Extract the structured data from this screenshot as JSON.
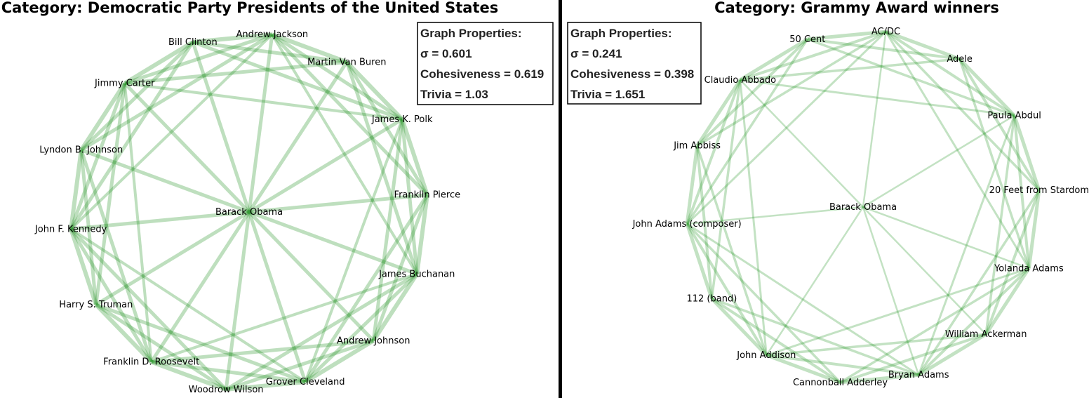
{
  "panels": [
    {
      "title": "Category: Democratic Party Presidents of the United States",
      "properties_title": "Graph Properties:",
      "properties": [
        "σ = 0.601",
        "Cohesiveness = 0.619",
        "Trivia = 1.03"
      ],
      "center_node": "Barack Obama",
      "nodes": [
        "Andrew Jackson",
        "Martin Van Buren",
        "James K. Polk",
        "Franklin Pierce",
        "James Buchanan",
        "Andrew Johnson",
        "Grover Cleveland",
        "Woodrow Wilson",
        "Franklin D. Roosevelt",
        "Harry S. Truman",
        "John F. Kennedy",
        "Lyndon B. Johnson",
        "Jimmy Carter",
        "Bill Clinton"
      ]
    },
    {
      "title": "Category: Grammy Award winners",
      "properties_title": "Graph Properties:",
      "properties": [
        "σ = 0.241",
        "Cohesiveness = 0.398",
        "Trivia = 1.651"
      ],
      "center_node": "Barack Obama",
      "nodes": [
        "AC/DC",
        "Adele",
        "Paula Abdul",
        "20 Feet from Stardom",
        "Yolanda Adams",
        "William Ackerman",
        "Bryan Adams",
        "Cannonball Adderley",
        "John Addison",
        "112 (band)",
        "John Adams (composer)",
        "Jim Abbiss",
        "Claudio Abbado",
        "50 Cent"
      ]
    }
  ]
}
